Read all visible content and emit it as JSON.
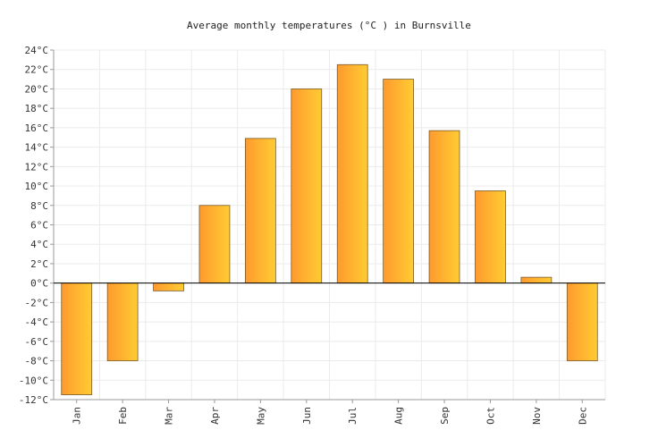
{
  "chart_data": {
    "type": "bar",
    "title": "Average monthly temperatures (°C ) in Burnsville",
    "categories": [
      "Jan",
      "Feb",
      "Mar",
      "Apr",
      "May",
      "Jun",
      "Jul",
      "Aug",
      "Sep",
      "Oct",
      "Nov",
      "Dec"
    ],
    "values": [
      -11.5,
      -8.0,
      -0.8,
      8.0,
      14.9,
      20.0,
      22.5,
      21.0,
      15.7,
      9.5,
      0.6,
      -8.0
    ],
    "ylim": [
      -12,
      24
    ],
    "ytick_step": 2,
    "ytick_suffix": "°C",
    "grid": true,
    "bar_gradient": [
      "#ff9a2e",
      "#ffcc33"
    ]
  }
}
